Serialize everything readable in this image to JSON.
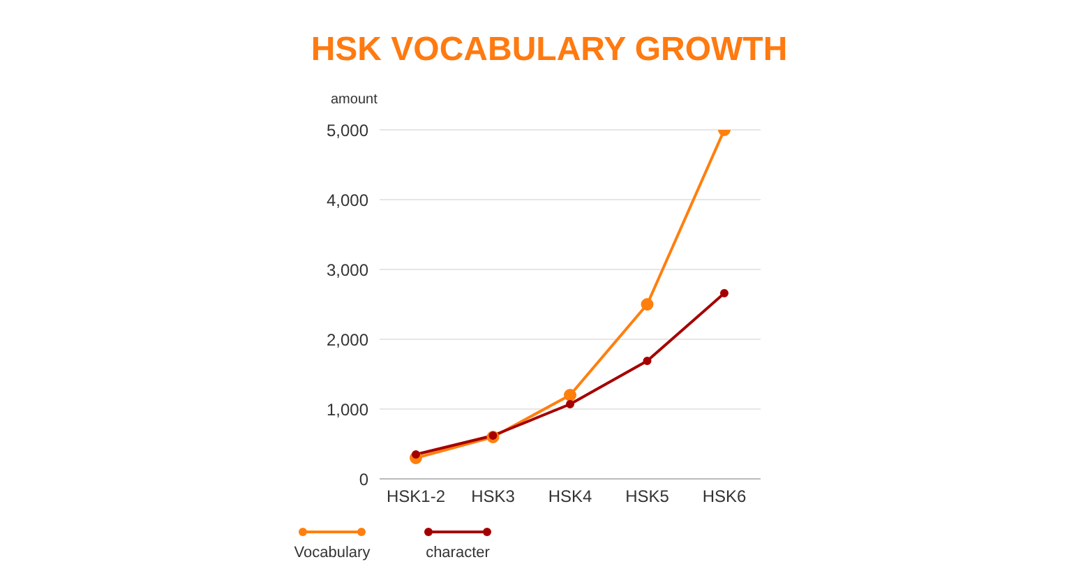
{
  "chart_data": {
    "type": "line",
    "title": "HSK VOCABULARY GROWTH",
    "ylabel": "amount",
    "categories": [
      "HSK1-2",
      "HSK3",
      "HSK4",
      "HSK5",
      "HSK6"
    ],
    "series": [
      {
        "name": "Vocabulary",
        "color": "#ff7f0e",
        "values": [
          300,
          600,
          1200,
          2500,
          5000
        ]
      },
      {
        "name": "character",
        "color": "#a50000",
        "values": [
          350,
          620,
          1070,
          1690,
          2660
        ]
      }
    ],
    "ylim": [
      0,
      5000
    ],
    "yticks": [
      {
        "value": 0,
        "label": "0"
      },
      {
        "value": 1000,
        "label": "1,000"
      },
      {
        "value": 2000,
        "label": "2,000"
      },
      {
        "value": 3000,
        "label": "3,000"
      },
      {
        "value": 4000,
        "label": "4,000"
      },
      {
        "value": 5000,
        "label": "5,000"
      }
    ],
    "grid": "y",
    "legend": "bottom left",
    "marker": "circle",
    "line_style": "solid"
  }
}
